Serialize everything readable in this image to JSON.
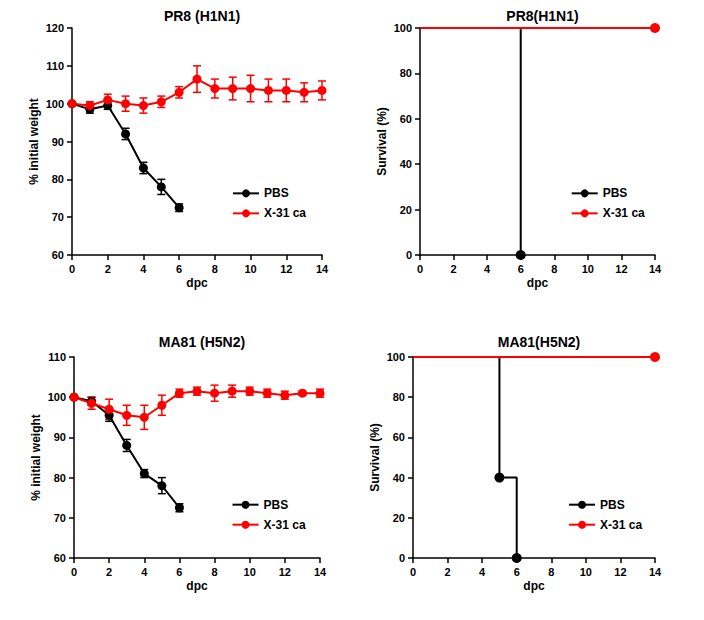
{
  "chart_data": [
    {
      "type": "line",
      "title": "PR8 (H1N1)",
      "x_label": "dpc",
      "y_label": "% initial weight",
      "xlim": [
        0,
        14
      ],
      "xticks": [
        0,
        2,
        4,
        6,
        8,
        10,
        12,
        14
      ],
      "ylim": [
        60,
        120
      ],
      "yticks": [
        60,
        70,
        80,
        90,
        100,
        110,
        120
      ],
      "grid": false,
      "legend": "lower right",
      "series": [
        {
          "name": "PBS",
          "color": "#000000",
          "marker": "circle",
          "line_style": "solid",
          "x": [
            0,
            1,
            2,
            3,
            4,
            5,
            6
          ],
          "values": [
            100,
            98.5,
            99.5,
            92,
            83,
            78,
            72.5
          ],
          "errors": [
            0,
            1,
            1,
            1.5,
            1.5,
            2,
            1
          ]
        },
        {
          "name": "X-31 ca",
          "color": "#ff0000",
          "marker": "circle",
          "line_style": "solid",
          "x": [
            0,
            1,
            2,
            3,
            4,
            5,
            6,
            7,
            8,
            9,
            10,
            11,
            12,
            13,
            14
          ],
          "values": [
            100,
            99.5,
            101,
            100,
            99.5,
            100.5,
            103,
            106.5,
            104,
            104,
            104,
            103.5,
            103.5,
            103,
            103.5
          ],
          "errors": [
            0,
            1,
            1.5,
            2,
            2,
            1.5,
            1.5,
            3.5,
            2.5,
            3,
            3.5,
            3,
            3,
            2.5,
            2.5
          ]
        }
      ]
    },
    {
      "type": "line",
      "title": "PR8(H1N1)",
      "x_label": "dpc",
      "y_label": "Survival (%)",
      "xlim": [
        0,
        14
      ],
      "xticks": [
        0,
        2,
        4,
        6,
        8,
        10,
        12,
        14
      ],
      "ylim": [
        0,
        100
      ],
      "yticks": [
        0,
        20,
        40,
        60,
        80,
        100
      ],
      "grid": false,
      "legend": "lower right",
      "series": [
        {
          "name": "PBS",
          "color": "#000000",
          "marker": "circle",
          "line_style": "step",
          "x": [
            0,
            6
          ],
          "values": [
            100,
            0
          ]
        },
        {
          "name": "X-31 ca",
          "color": "#ff0000",
          "marker": "circle",
          "line_style": "step",
          "x": [
            0,
            14
          ],
          "values": [
            100,
            100
          ]
        }
      ]
    },
    {
      "type": "line",
      "title": "MA81 (H5N2)",
      "x_label": "dpc",
      "y_label": "% initial weight",
      "xlim": [
        0,
        14
      ],
      "xticks": [
        0,
        2,
        4,
        6,
        8,
        10,
        12,
        14
      ],
      "ylim": [
        60,
        110
      ],
      "yticks": [
        60,
        70,
        80,
        90,
        100,
        110
      ],
      "grid": false,
      "legend": "lower right",
      "series": [
        {
          "name": "PBS",
          "color": "#000000",
          "marker": "circle",
          "line_style": "solid",
          "x": [
            0,
            1,
            2,
            3,
            4,
            5,
            6
          ],
          "values": [
            100,
            99,
            95.5,
            88,
            81,
            78,
            72.5
          ],
          "errors": [
            0,
            1,
            1.5,
            1.5,
            1,
            2,
            1
          ]
        },
        {
          "name": "X-31 ca",
          "color": "#ff0000",
          "marker": "circle",
          "line_style": "solid",
          "x": [
            0,
            1,
            2,
            3,
            4,
            5,
            6,
            7,
            8,
            9,
            10,
            11,
            12,
            13,
            14
          ],
          "values": [
            100,
            98.5,
            97,
            95.5,
            95,
            98,
            101,
            101.5,
            101,
            101.5,
            101.5,
            101,
            100.5,
            101,
            101
          ],
          "errors": [
            0,
            1.5,
            2.5,
            2.5,
            3,
            2.5,
            1,
            1,
            2,
            1.5,
            1,
            1,
            1,
            0.5,
            1
          ]
        }
      ]
    },
    {
      "type": "line",
      "title": "MA81(H5N2)",
      "x_label": "dpc",
      "y_label": "Survival (%)",
      "xlim": [
        0,
        14
      ],
      "xticks": [
        0,
        2,
        4,
        6,
        8,
        10,
        12,
        14
      ],
      "ylim": [
        0,
        100
      ],
      "yticks": [
        0,
        20,
        40,
        60,
        80,
        100
      ],
      "grid": false,
      "legend": "lower right",
      "series": [
        {
          "name": "PBS",
          "color": "#000000",
          "marker": "circle",
          "line_style": "step",
          "x": [
            0,
            5,
            6
          ],
          "values": [
            100,
            40,
            0
          ]
        },
        {
          "name": "X-31 ca",
          "color": "#ff0000",
          "marker": "circle",
          "line_style": "step",
          "x": [
            0,
            14
          ],
          "values": [
            100,
            100
          ]
        }
      ]
    }
  ]
}
